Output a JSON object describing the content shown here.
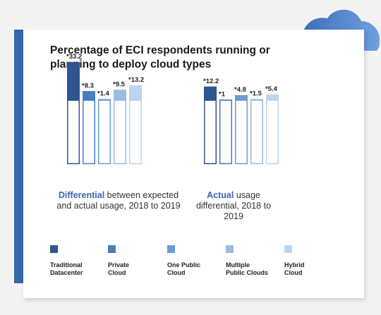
{
  "title": "Percentage of ECI respondents running or planning to deploy cloud types",
  "colors": {
    "accent": "#3567ad",
    "traditional_datacenter": "#2f5591",
    "private_cloud": "#4a7cc2",
    "one_public_cloud": "#6b9bd6",
    "multiple_public_clouds": "#9cbbe3",
    "hybrid_cloud": "#bed3ee"
  },
  "chart_data": [
    {
      "type": "bar",
      "categories": [
        "Traditional Datacenter",
        "Private Cloud",
        "One Public Cloud",
        "Multiple Public Clouds",
        "Hybrid Cloud"
      ],
      "data_labels": [
        "*33.2",
        "*8.3",
        "*1.4",
        "*9.5",
        "*13.2"
      ],
      "values": [
        33.2,
        8.3,
        1.4,
        9.5,
        13.2
      ],
      "caption_highlight": "Differential",
      "caption_rest": "between expected and actual usage, 2018 to 2019"
    },
    {
      "type": "bar",
      "categories": [
        "Traditional Datacenter",
        "Private Cloud",
        "One Public Cloud",
        "Multiple Public Clouds",
        "Hybrid Cloud"
      ],
      "data_labels": [
        "*12.2",
        "*1",
        "*4.8",
        "*1.5",
        "*5.4"
      ],
      "values": [
        12.2,
        1,
        4.8,
        1.5,
        5.4
      ],
      "caption_highlight": "Actual",
      "caption_rest": "usage differential, 2018 to 2019"
    }
  ],
  "legend": [
    {
      "label": "Traditional\nDatacenter",
      "color": "#2f5591"
    },
    {
      "label": "Private\nCloud",
      "color": "#4a7cc2"
    },
    {
      "label": "One Public\nCloud",
      "color": "#6b9bd6"
    },
    {
      "label": "Multiple\nPublic Clouds",
      "color": "#9cbbe3"
    },
    {
      "label": "Hybrid\nCloud",
      "color": "#bed3ee"
    }
  ]
}
